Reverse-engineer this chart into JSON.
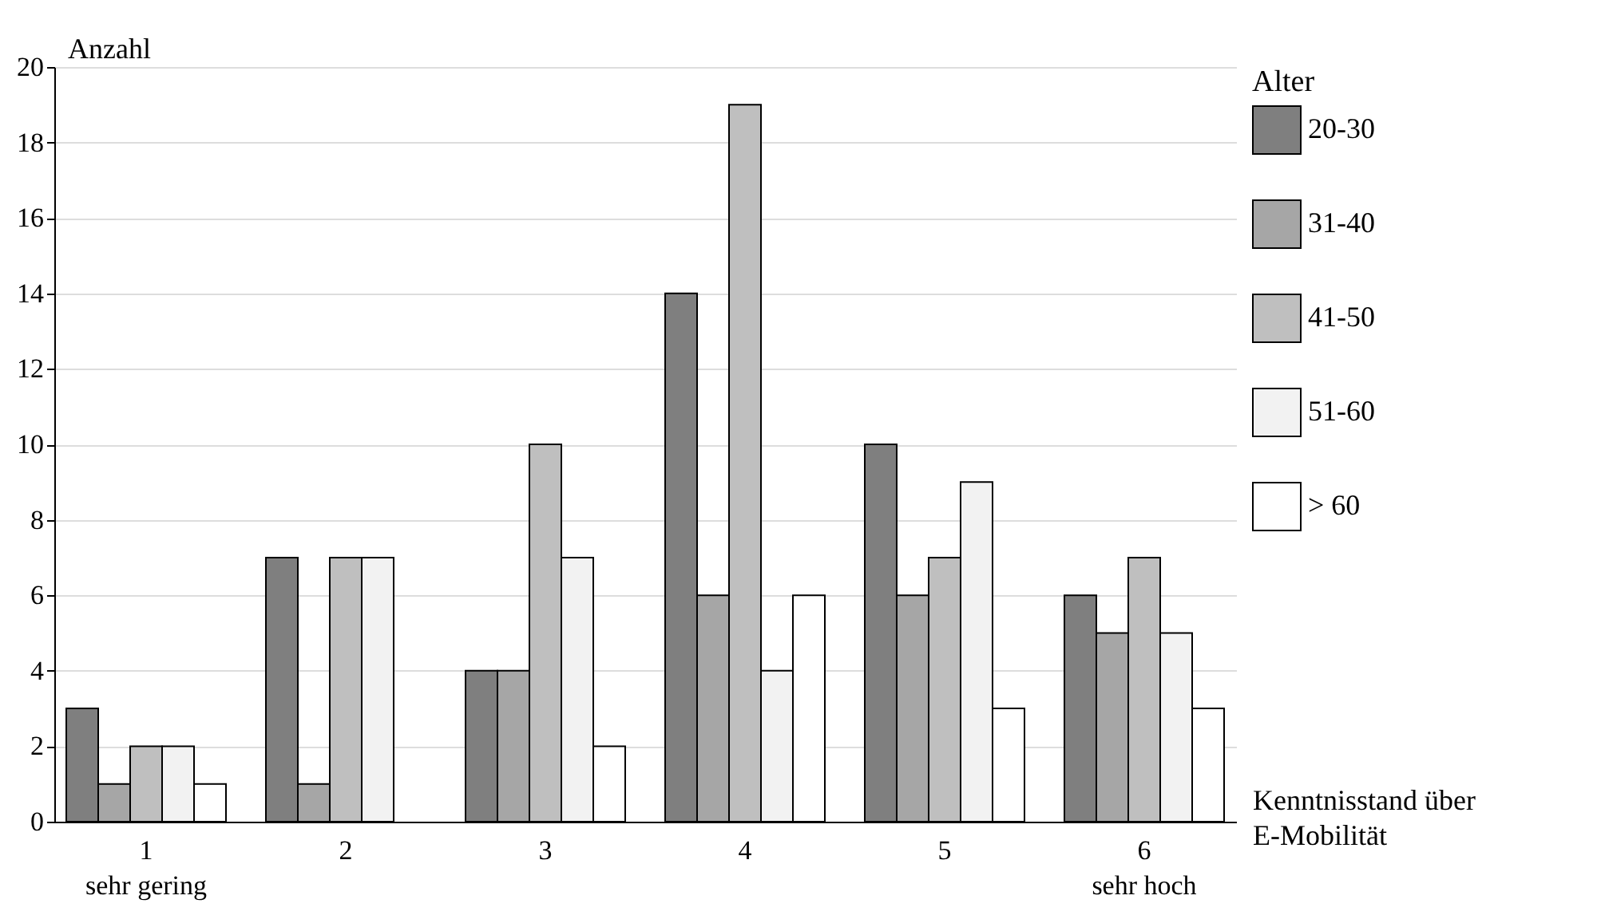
{
  "chart_data": {
    "type": "bar",
    "categories": [
      "1\nsehr gering",
      "2",
      "3",
      "4",
      "5",
      "6\nsehr hoch"
    ],
    "xlabel": "Kenntnisstand über E-Mobilität",
    "ylabel": "Anzahl",
    "legend_title": "Alter",
    "series": [
      {
        "name": "20-30",
        "color": "#7f7f7f",
        "values": [
          3,
          7,
          4,
          14,
          10,
          6
        ]
      },
      {
        "name": "31-40",
        "color": "#a6a6a6",
        "values": [
          1,
          1,
          4,
          6,
          6,
          5
        ]
      },
      {
        "name": "41-50",
        "color": "#bfbfbf",
        "values": [
          2,
          7,
          10,
          19,
          7,
          7
        ]
      },
      {
        "name": "51-60",
        "color": "#f2f2f2",
        "values": [
          2,
          7,
          7,
          4,
          9,
          5
        ]
      },
      {
        "name": "> 60",
        "color": "#ffffff",
        "values": [
          1,
          0,
          2,
          6,
          3,
          3
        ]
      }
    ],
    "ylim": [
      0,
      20
    ],
    "yticks": [
      0,
      2,
      4,
      6,
      8,
      10,
      12,
      14,
      16,
      18,
      20
    ],
    "grid": "y",
    "legend": "right"
  }
}
